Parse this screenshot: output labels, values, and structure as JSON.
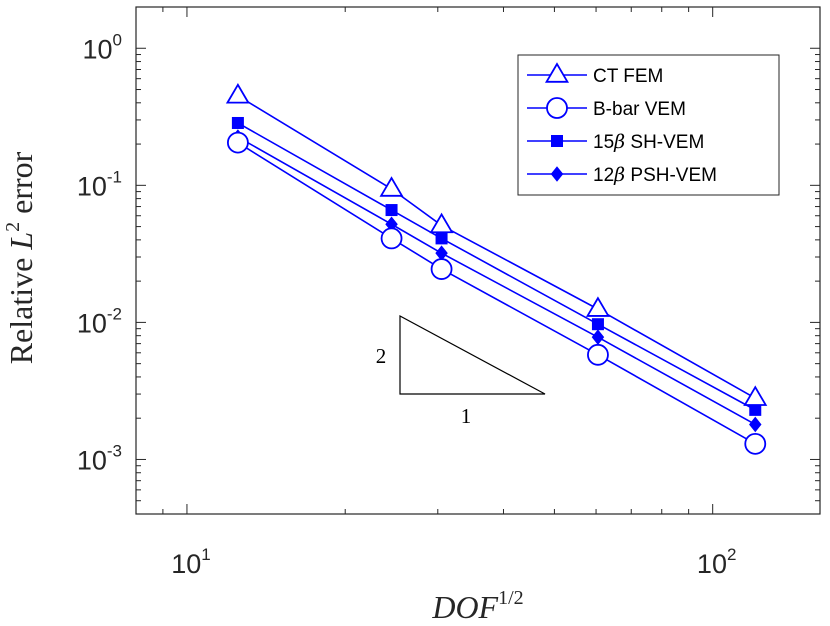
{
  "chart_data": {
    "type": "line",
    "xscale": "log",
    "yscale": "log",
    "xlim": [
      8,
      160
    ],
    "ylim": [
      0.0004,
      2
    ],
    "grid": false,
    "legend_position": "top-right",
    "xlabel": {
      "base": "DOF",
      "sup": "1/2"
    },
    "ylabel": {
      "prefix": "Relative ",
      "var": "L",
      "sup": "2",
      "suffix": " error"
    },
    "xticks": [
      {
        "value": 10,
        "base": "10",
        "exp": "1"
      },
      {
        "value": 100,
        "base": "10",
        "exp": "2"
      }
    ],
    "yticks": [
      {
        "value": 1,
        "base": "10",
        "exp": "0"
      },
      {
        "value": 0.1,
        "base": "10",
        "exp": "-1"
      },
      {
        "value": 0.01,
        "base": "10",
        "exp": "-2"
      },
      {
        "value": 0.001,
        "base": "10",
        "exp": "-3"
      }
    ],
    "x": [
      12.5,
      24.5,
      30.5,
      60.5,
      120.5
    ],
    "series": [
      {
        "name": "CT FEM",
        "prefix": "CT FEM",
        "beta": "",
        "suffix": "",
        "marker": "triangle",
        "values": [
          0.45,
          0.094,
          0.051,
          0.0125,
          0.0028
        ]
      },
      {
        "name": "B-bar VEM",
        "prefix": "B-bar VEM",
        "beta": "",
        "suffix": "",
        "marker": "circle",
        "values": [
          0.205,
          0.041,
          0.0245,
          0.0058,
          0.0013
        ]
      },
      {
        "name": "15β SH-VEM",
        "prefix": "15",
        "beta": "β",
        "suffix": " SH-VEM",
        "marker": "square",
        "values": [
          0.285,
          0.066,
          0.041,
          0.0097,
          0.0023
        ]
      },
      {
        "name": "12β PSH-VEM",
        "prefix": "12",
        "beta": "β",
        "suffix": " PSH-VEM",
        "marker": "diamond",
        "values": [
          0.225,
          0.052,
          0.032,
          0.0078,
          0.0018
        ]
      }
    ],
    "slope_triangle": {
      "rise": "2",
      "run": "1"
    }
  },
  "colors": {
    "series": "#0000ff",
    "axis": "#262626",
    "text": "#000000"
  }
}
